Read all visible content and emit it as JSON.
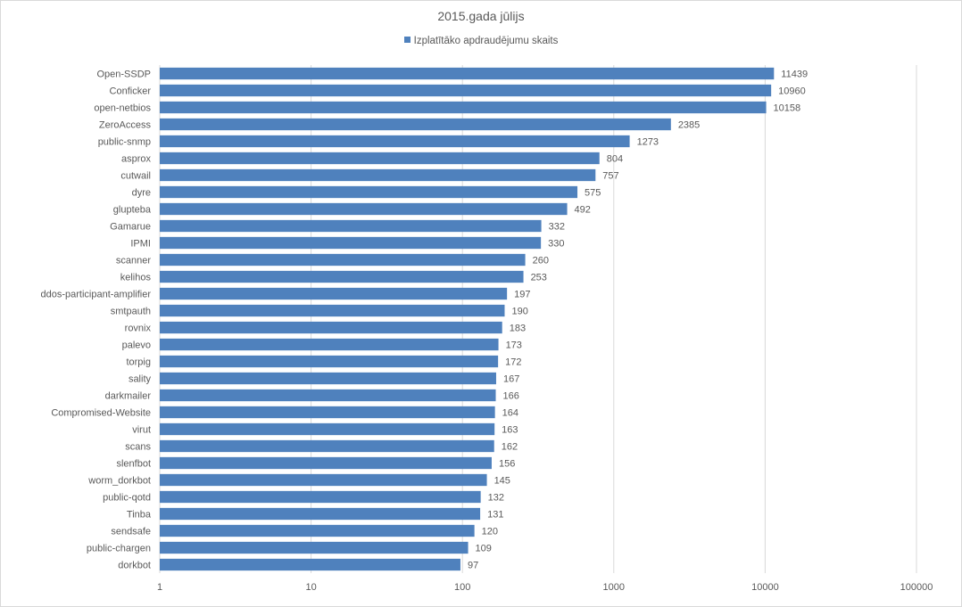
{
  "chart_data": {
    "type": "bar",
    "orientation": "horizontal",
    "title": "2015.gada jūlijs",
    "xlabel": "",
    "ylabel": "",
    "x_scale": "log",
    "xlim": [
      1,
      100000
    ],
    "x_ticks": [
      "1",
      "10",
      "100",
      "1000",
      "10000",
      "100000"
    ],
    "legend_position": "top",
    "grid": true,
    "colors": {
      "bar": "#4f81bd",
      "grid": "#d9d9d9",
      "text": "#595959"
    },
    "categories": [
      "Open-SSDP",
      "Conficker",
      "open-netbios",
      "ZeroAccess",
      "public-snmp",
      "asprox",
      "cutwail",
      "dyre",
      "glupteba",
      "Gamarue",
      "IPMI",
      "scanner",
      "kelihos",
      "ddos-participant-amplifier",
      "smtpauth",
      "rovnix",
      "palevo",
      "torpig",
      "sality",
      "darkmailer",
      "Compromised-Website",
      "virut",
      "scans",
      "slenfbot",
      "worm_dorkbot",
      "public-qotd",
      "Tinba",
      "sendsafe",
      "public-chargen",
      "dorkbot"
    ],
    "series": [
      {
        "name": "Izplatītāko apdraudējumu skaits",
        "values": [
          11439,
          10960,
          10158,
          2385,
          1273,
          804,
          757,
          575,
          492,
          332,
          330,
          260,
          253,
          197,
          190,
          183,
          173,
          172,
          167,
          166,
          164,
          163,
          162,
          156,
          145,
          132,
          131,
          120,
          109,
          97
        ]
      }
    ]
  }
}
